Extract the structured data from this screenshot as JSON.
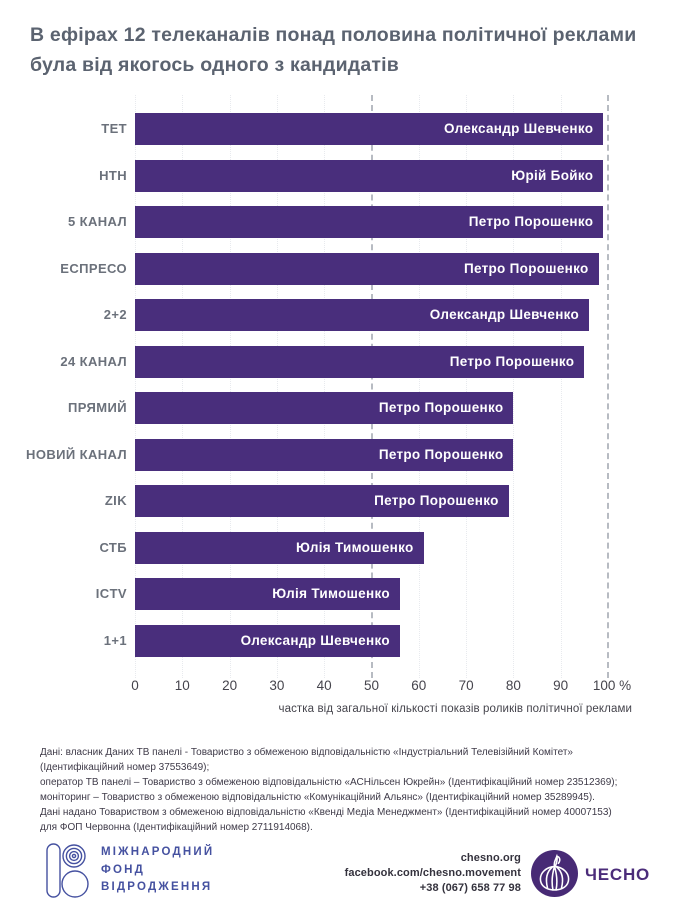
{
  "title": "В ефірах 12 телеканалів понад половина політичної реклами була від якогось одного з кандидатів",
  "chart_data": {
    "type": "bar",
    "orientation": "horizontal",
    "categories": [
      "ТЕТ",
      "НТН",
      "5 КАНАЛ",
      "ЕСПРЕСО",
      "2+2",
      "24 КАНАЛ",
      "ПРЯМИЙ",
      "НОВИЙ КАНАЛ",
      "ZIK",
      "СТБ",
      "ICTV",
      "1+1"
    ],
    "values": [
      99,
      99,
      99,
      98,
      96,
      95,
      80,
      80,
      79,
      61,
      56,
      56
    ],
    "bar_labels": [
      "Олександр Шевченко",
      "Юрій Бойко",
      "Петро Порошенко",
      "Петро Порошенко",
      "Олександр Шевченко",
      "Петро Порошенко",
      "Петро Порошенко",
      "Петро Порошенко",
      "Петро Порошенко",
      "Юлія Тимошенко",
      "Юлія Тимошенко",
      "Олександр Шевченко"
    ],
    "xlabel": "частка від загальної кількості показів роликів політичної реклами",
    "x_ticks": [
      0,
      10,
      20,
      30,
      40,
      50,
      60,
      70,
      80,
      90,
      100
    ],
    "x_tick_labels": [
      "0",
      "10",
      "20",
      "30",
      "40",
      "50",
      "60",
      "70",
      "80",
      "90",
      "100 %"
    ],
    "xlim": [
      0,
      100
    ],
    "grid": "dotted vertical at every 10",
    "reference_lines_dashed": [
      50,
      100
    ],
    "legend": "none"
  },
  "footnote_lines": [
    "Дані: власник Даних ТВ панелі - Товариство з обмеженою відповідальністю «Індустріальний Телевізійний Комітет»",
    "(Ідентифікаційний номер 37553649);",
    "оператор ТВ панелі – Товариство з обмеженою відповідальністю «АСНільсен Юкрейн»  (Ідентифікаційний номер 23512369);",
    "моніторинг – Товариство з обмеженою відповідальністю «Комунікаційний Альянс»  (Ідентифікаційний номер 35289945).",
    "Дані надано Товариством з обмеженою відповідальністю «Квенді Медіа Менеджмент»  (Ідентифікаційний номер 40007153)",
    "для ФОП Червонна (Ідентифікаційний номер 2711914068)."
  ],
  "footer": {
    "irf": {
      "logo_icon": "irf-rings-icon",
      "l1": "МІЖНАРОДНИЙ",
      "l2": "ФОНД",
      "l3": "ВІДРОДЖЕННЯ"
    },
    "contacts": {
      "website": "chesno.org",
      "facebook": "facebook.com/chesno.movement",
      "phone": "+38 (067) 658 77 98"
    },
    "chesno": {
      "logo_icon": "garlic-icon",
      "name": "ЧЕСНО"
    }
  },
  "colors": {
    "bar": "#492e7c",
    "title": "#5b6370",
    "channel_label": "#6b717b",
    "axis": "#45444c",
    "footnote": "#3e3a48",
    "irf": "#4551a0",
    "chesno": "#4b2c7a",
    "contact": "#34323d",
    "dashed_line": "#b7bbc2",
    "grid_dot": "#e8eaee"
  }
}
